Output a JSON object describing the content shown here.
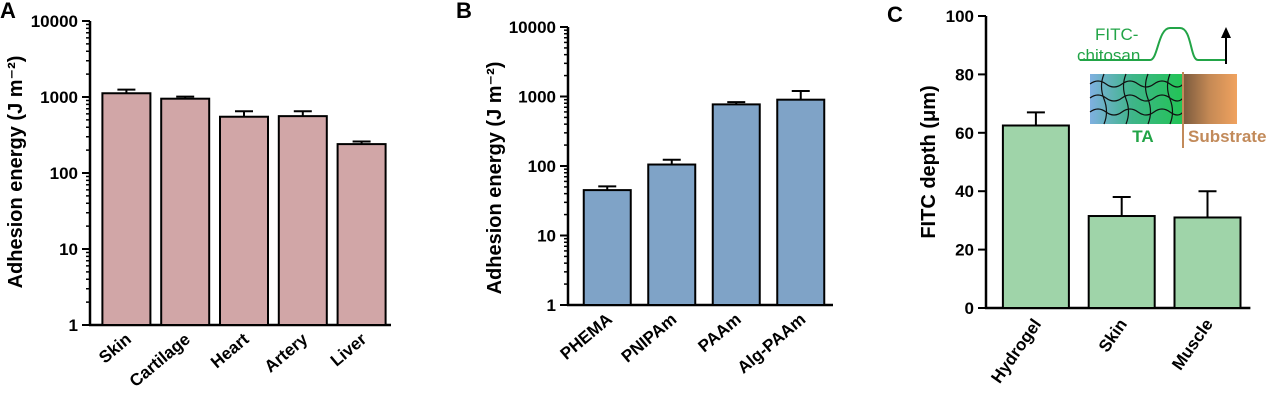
{
  "chart_data": [
    {
      "panel": "A",
      "type": "bar",
      "scale": "log",
      "ylabel": "Adhesion energy (J m⁻²)",
      "ylim": [
        1,
        10000
      ],
      "yticks": [
        "1",
        "10",
        "100",
        "1000",
        "10000"
      ],
      "categories": [
        "Skin",
        "Cartilage",
        "Heart",
        "Artery",
        "Liver"
      ],
      "values": [
        1120,
        950,
        550,
        560,
        240
      ],
      "errors": [
        130,
        60,
        100,
        90,
        20
      ],
      "bar_color": "#d1a6a7"
    },
    {
      "panel": "B",
      "type": "bar",
      "scale": "log",
      "ylabel": "Adhesion energy (J m⁻²)",
      "ylim": [
        1,
        10000
      ],
      "yticks": [
        "1",
        "10",
        "100",
        "1000",
        "10000"
      ],
      "categories": [
        "PHEMA",
        "PNIPAm",
        "PAAm",
        "Alg-PAAm"
      ],
      "values": [
        45,
        105,
        770,
        900
      ],
      "errors": [
        6,
        18,
        60,
        300
      ],
      "bar_color": "#7fa3c7"
    },
    {
      "panel": "C",
      "type": "bar",
      "scale": "linear",
      "ylabel": "FITC depth (μm)",
      "ylim": [
        0,
        100
      ],
      "yticks": [
        "0",
        "20",
        "40",
        "60",
        "80",
        "100"
      ],
      "categories": [
        "Hydrogel",
        "Skin",
        "Muscle"
      ],
      "values": [
        62.5,
        31.5,
        31.0
      ],
      "errors": [
        4.5,
        6.5,
        9.0
      ],
      "bar_color": "#9fd4a9",
      "inset": {
        "curve_label_1": "FITC-",
        "curve_label_2": "chitosan",
        "ta_label": "TA",
        "substrate_label": "Substrate",
        "curve_color": "#22a447",
        "ta_color": "#22a447",
        "substrate_color": "#c28a5a"
      }
    }
  ]
}
